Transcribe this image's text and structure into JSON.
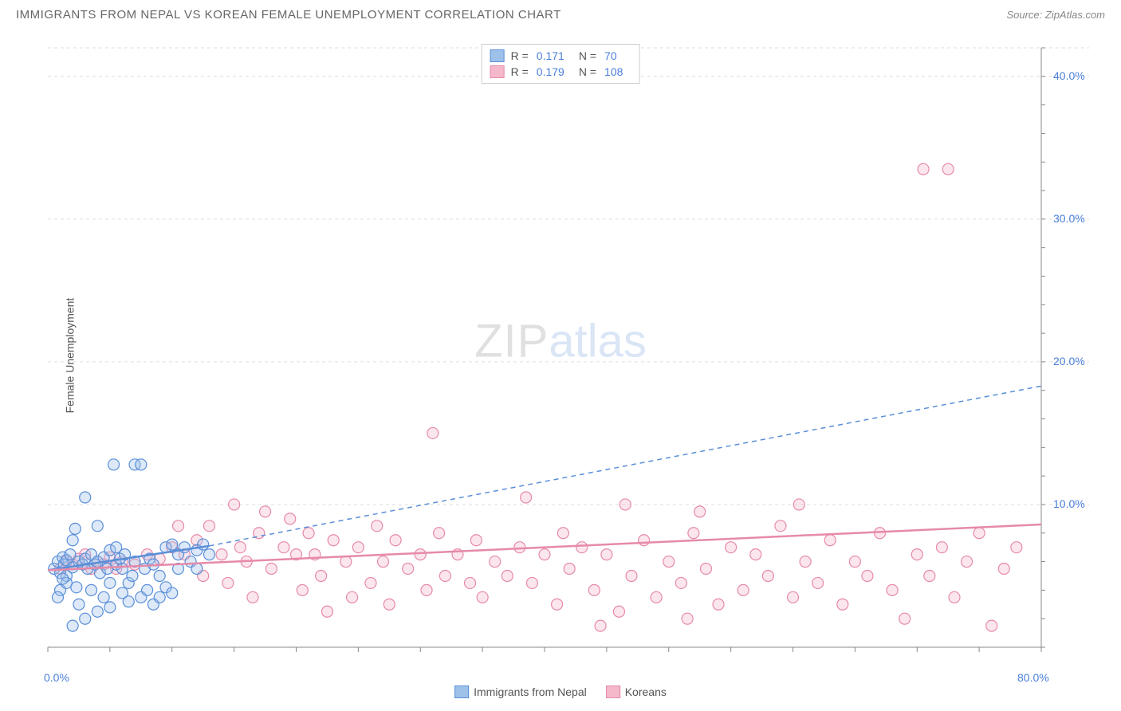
{
  "title": "IMMIGRANTS FROM NEPAL VS KOREAN FEMALE UNEMPLOYMENT CORRELATION CHART",
  "source": "Source: ZipAtlas.com",
  "ylabel": "Female Unemployment",
  "watermark": {
    "part1": "ZIP",
    "part2": "atlas"
  },
  "chart": {
    "type": "scatter",
    "background_color": "#ffffff",
    "grid_color": "#dddddd",
    "grid_dash": "4,4",
    "label_color": "#4a7fd8",
    "label_fontsize": 14,
    "ylabel_fontsize": 14,
    "ylabel_color": "#555555",
    "xlim": [
      0,
      80
    ],
    "ylim": [
      0,
      42
    ],
    "xtick_major": [
      0,
      80
    ],
    "xtick_labels": [
      "0.0%",
      "80.0%"
    ],
    "xtick_minor_step": 5,
    "ytick_major": [
      10,
      20,
      30,
      40
    ],
    "ytick_labels": [
      "10.0%",
      "20.0%",
      "30.0%",
      "40.0%"
    ],
    "marker_radius": 7,
    "marker_stroke_width": 1.2,
    "marker_fill_opacity": 0.35,
    "trend_line_width": 2.5,
    "extrap_line_width": 1.5,
    "extrap_dash": "6,5",
    "series": [
      {
        "name": "Immigrants from Nepal",
        "color_stroke": "#5a8fd8",
        "color_fill": "#9ec1ea",
        "R": "0.171",
        "N": "70",
        "trend": {
          "x1": 0,
          "y1": 5.4,
          "x2": 13,
          "y2": 7.1
        },
        "extrap": {
          "x1": 13,
          "y1": 7.1,
          "x2": 80,
          "y2": 18.3
        },
        "points": [
          [
            0.5,
            5.5
          ],
          [
            0.8,
            6.0
          ],
          [
            1.0,
            5.2
          ],
          [
            1.2,
            6.3
          ],
          [
            1.3,
            5.8
          ],
          [
            1.5,
            6.1
          ],
          [
            1.5,
            5.0
          ],
          [
            1.8,
            6.5
          ],
          [
            2.0,
            5.6
          ],
          [
            2.0,
            7.5
          ],
          [
            2.2,
            8.3
          ],
          [
            2.3,
            4.2
          ],
          [
            2.5,
            6.0
          ],
          [
            2.5,
            3.0
          ],
          [
            2.8,
            5.8
          ],
          [
            3.0,
            6.2
          ],
          [
            3.0,
            10.5
          ],
          [
            3.2,
            5.5
          ],
          [
            3.5,
            6.5
          ],
          [
            3.5,
            4.0
          ],
          [
            3.8,
            5.8
          ],
          [
            4.0,
            6.0
          ],
          [
            4.0,
            8.5
          ],
          [
            4.2,
            5.2
          ],
          [
            4.5,
            6.3
          ],
          [
            4.5,
            3.5
          ],
          [
            4.8,
            5.5
          ],
          [
            5.0,
            6.8
          ],
          [
            5.0,
            4.5
          ],
          [
            5.3,
            12.8
          ],
          [
            5.5,
            5.8
          ],
          [
            5.5,
            7.0
          ],
          [
            5.8,
            6.2
          ],
          [
            6.0,
            3.8
          ],
          [
            6.0,
            5.5
          ],
          [
            6.2,
            6.5
          ],
          [
            6.5,
            4.5
          ],
          [
            6.5,
            3.2
          ],
          [
            6.8,
            5.0
          ],
          [
            7.0,
            12.8
          ],
          [
            7.0,
            6.0
          ],
          [
            7.5,
            12.8
          ],
          [
            7.5,
            3.5
          ],
          [
            7.8,
            5.5
          ],
          [
            8.0,
            4.0
          ],
          [
            8.2,
            6.2
          ],
          [
            8.5,
            3.0
          ],
          [
            8.5,
            5.8
          ],
          [
            9.0,
            3.5
          ],
          [
            9.0,
            5.0
          ],
          [
            9.5,
            7.0
          ],
          [
            9.5,
            4.2
          ],
          [
            10.0,
            7.2
          ],
          [
            10.0,
            3.8
          ],
          [
            10.5,
            5.5
          ],
          [
            10.5,
            6.5
          ],
          [
            11.0,
            7.0
          ],
          [
            11.5,
            6.0
          ],
          [
            12.0,
            5.5
          ],
          [
            12.0,
            6.8
          ],
          [
            12.5,
            7.2
          ],
          [
            13.0,
            6.5
          ],
          [
            2.0,
            1.5
          ],
          [
            3.0,
            2.0
          ],
          [
            4.0,
            2.5
          ],
          [
            5.0,
            2.8
          ],
          [
            1.0,
            4.0
          ],
          [
            1.5,
            4.5
          ],
          [
            0.8,
            3.5
          ],
          [
            1.2,
            4.8
          ]
        ]
      },
      {
        "name": "Koreans",
        "color_stroke": "#e68aa8",
        "color_fill": "#f5b8cb",
        "R": "0.179",
        "N": "108",
        "trend": {
          "x1": 0,
          "y1": 5.4,
          "x2": 80,
          "y2": 8.6
        },
        "extrap": null,
        "points": [
          [
            1.0,
            5.5
          ],
          [
            1.5,
            6.0
          ],
          [
            2.0,
            5.8
          ],
          [
            2.5,
            6.2
          ],
          [
            3.0,
            6.5
          ],
          [
            3.5,
            5.5
          ],
          [
            4.0,
            6.0
          ],
          [
            4.5,
            5.8
          ],
          [
            5.0,
            6.3
          ],
          [
            5.5,
            5.5
          ],
          [
            6.0,
            6.0
          ],
          [
            7.0,
            5.8
          ],
          [
            8.0,
            6.5
          ],
          [
            9.0,
            6.2
          ],
          [
            10.0,
            7.0
          ],
          [
            10.5,
            8.5
          ],
          [
            11.0,
            6.5
          ],
          [
            12.0,
            7.5
          ],
          [
            12.5,
            5.0
          ],
          [
            13.0,
            8.5
          ],
          [
            14.0,
            6.5
          ],
          [
            15.0,
            10.0
          ],
          [
            15.5,
            7.0
          ],
          [
            16.0,
            6.0
          ],
          [
            17.0,
            8.0
          ],
          [
            17.5,
            9.5
          ],
          [
            18.0,
            5.5
          ],
          [
            19.0,
            7.0
          ],
          [
            20.0,
            6.5
          ],
          [
            20.5,
            4.0
          ],
          [
            21.0,
            8.0
          ],
          [
            21.5,
            6.5
          ],
          [
            22.0,
            5.0
          ],
          [
            23.0,
            7.5
          ],
          [
            24.0,
            6.0
          ],
          [
            24.5,
            3.5
          ],
          [
            25.0,
            7.0
          ],
          [
            26.0,
            4.5
          ],
          [
            26.5,
            8.5
          ],
          [
            27.0,
            6.0
          ],
          [
            27.5,
            3.0
          ],
          [
            28.0,
            7.5
          ],
          [
            29.0,
            5.5
          ],
          [
            30.0,
            6.5
          ],
          [
            30.5,
            4.0
          ],
          [
            31.0,
            15.0
          ],
          [
            31.5,
            8.0
          ],
          [
            32.0,
            5.0
          ],
          [
            33.0,
            6.5
          ],
          [
            34.0,
            4.5
          ],
          [
            34.5,
            7.5
          ],
          [
            35.0,
            3.5
          ],
          [
            36.0,
            6.0
          ],
          [
            37.0,
            5.0
          ],
          [
            38.0,
            7.0
          ],
          [
            38.5,
            10.5
          ],
          [
            39.0,
            4.5
          ],
          [
            40.0,
            6.5
          ],
          [
            41.0,
            3.0
          ],
          [
            41.5,
            8.0
          ],
          [
            42.0,
            5.5
          ],
          [
            43.0,
            7.0
          ],
          [
            44.0,
            4.0
          ],
          [
            45.0,
            6.5
          ],
          [
            46.0,
            2.5
          ],
          [
            46.5,
            10.0
          ],
          [
            47.0,
            5.0
          ],
          [
            48.0,
            7.5
          ],
          [
            49.0,
            3.5
          ],
          [
            50.0,
            6.0
          ],
          [
            51.0,
            4.5
          ],
          [
            52.0,
            8.0
          ],
          [
            52.5,
            9.5
          ],
          [
            53.0,
            5.5
          ],
          [
            54.0,
            3.0
          ],
          [
            55.0,
            7.0
          ],
          [
            56.0,
            4.0
          ],
          [
            57.0,
            6.5
          ],
          [
            58.0,
            5.0
          ],
          [
            59.0,
            8.5
          ],
          [
            60.0,
            3.5
          ],
          [
            60.5,
            10.0
          ],
          [
            61.0,
            6.0
          ],
          [
            62.0,
            4.5
          ],
          [
            63.0,
            7.5
          ],
          [
            64.0,
            3.0
          ],
          [
            65.0,
            6.0
          ],
          [
            66.0,
            5.0
          ],
          [
            67.0,
            8.0
          ],
          [
            68.0,
            4.0
          ],
          [
            69.0,
            2.0
          ],
          [
            70.0,
            6.5
          ],
          [
            70.5,
            33.5
          ],
          [
            71.0,
            5.0
          ],
          [
            72.0,
            7.0
          ],
          [
            72.5,
            33.5
          ],
          [
            73.0,
            3.5
          ],
          [
            74.0,
            6.0
          ],
          [
            75.0,
            8.0
          ],
          [
            76.0,
            1.5
          ],
          [
            77.0,
            5.5
          ],
          [
            78.0,
            7.0
          ],
          [
            44.5,
            1.5
          ],
          [
            51.5,
            2.0
          ],
          [
            14.5,
            4.5
          ],
          [
            16.5,
            3.5
          ],
          [
            19.5,
            9.0
          ],
          [
            22.5,
            2.5
          ]
        ]
      }
    ]
  },
  "legend_top": {
    "r_label": "R =",
    "n_label": "N ="
  },
  "legend_bottom": [
    {
      "label": "Immigrants from Nepal",
      "fill": "#9ec1ea",
      "stroke": "#5a8fd8"
    },
    {
      "label": "Koreans",
      "fill": "#f5b8cb",
      "stroke": "#e68aa8"
    }
  ]
}
